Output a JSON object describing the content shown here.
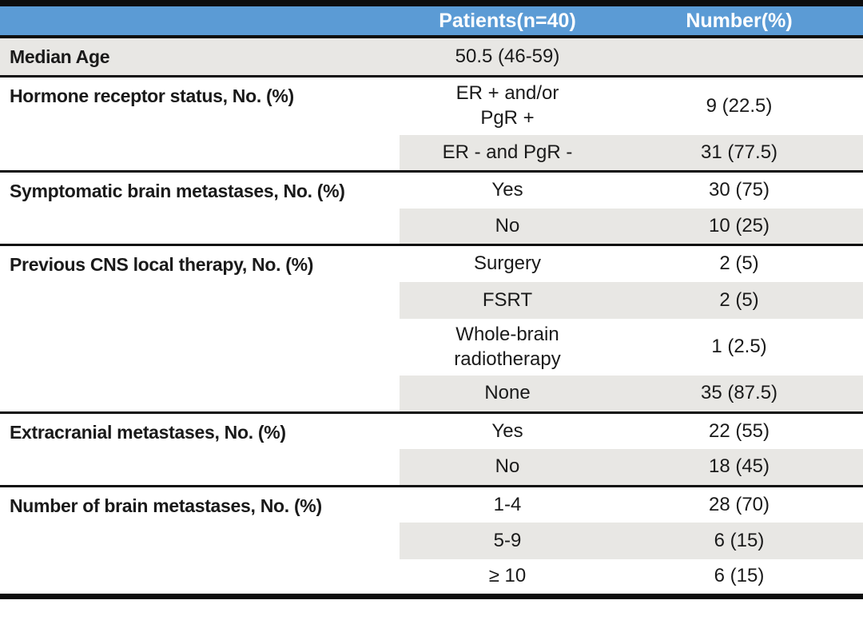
{
  "colors": {
    "header_bg": "#5b9bd5",
    "header_text": "#ffffff",
    "band_bg": "#e8e7e4",
    "border": "#0d0d0d",
    "text": "#1a1a1a"
  },
  "header": {
    "col1": "",
    "col2": "Patients(n=40)",
    "col3": "Number(%)"
  },
  "groups": [
    {
      "label": "Median Age",
      "label_shaded": true,
      "rows": [
        {
          "patients": "50.5 (46-59)",
          "number": "",
          "shaded": true
        }
      ]
    },
    {
      "label": "Hormone receptor status, No. (%)",
      "label_shaded": false,
      "rows": [
        {
          "patients": "ER + and/or\nPgR +",
          "number": "9 (22.5)",
          "shaded": false
        },
        {
          "patients": "ER - and PgR -",
          "number": "31 (77.5)",
          "shaded": true
        }
      ]
    },
    {
      "label": "Symptomatic brain metastases, No. (%)",
      "label_shaded": false,
      "rows": [
        {
          "patients": "Yes",
          "number": "30 (75)",
          "shaded": false
        },
        {
          "patients": "No",
          "number": "10 (25)",
          "shaded": true
        }
      ]
    },
    {
      "label": "Previous CNS local therapy, No. (%)",
      "label_shaded": false,
      "rows": [
        {
          "patients": "Surgery",
          "number": "2 (5)",
          "shaded": false
        },
        {
          "patients": "FSRT",
          "number": "2 (5)",
          "shaded": true
        },
        {
          "patients": "Whole-brain\nradiotherapy",
          "number": "1 (2.5)",
          "shaded": false
        },
        {
          "patients": "None",
          "number": "35 (87.5)",
          "shaded": true
        }
      ]
    },
    {
      "label": "Extracranial metastases, No. (%)",
      "label_shaded": false,
      "rows": [
        {
          "patients": "Yes",
          "number": "22 (55)",
          "shaded": false
        },
        {
          "patients": "No",
          "number": "18 (45)",
          "shaded": true
        }
      ]
    },
    {
      "label": "Number of brain metastases, No. (%)",
      "label_shaded": false,
      "rows": [
        {
          "patients": "1-4",
          "number": "28 (70)",
          "shaded": false
        },
        {
          "patients": "5-9",
          "number": "6 (15)",
          "shaded": true
        },
        {
          "patients": "≥ 10",
          "number": "6 (15)",
          "shaded": false
        }
      ]
    }
  ]
}
